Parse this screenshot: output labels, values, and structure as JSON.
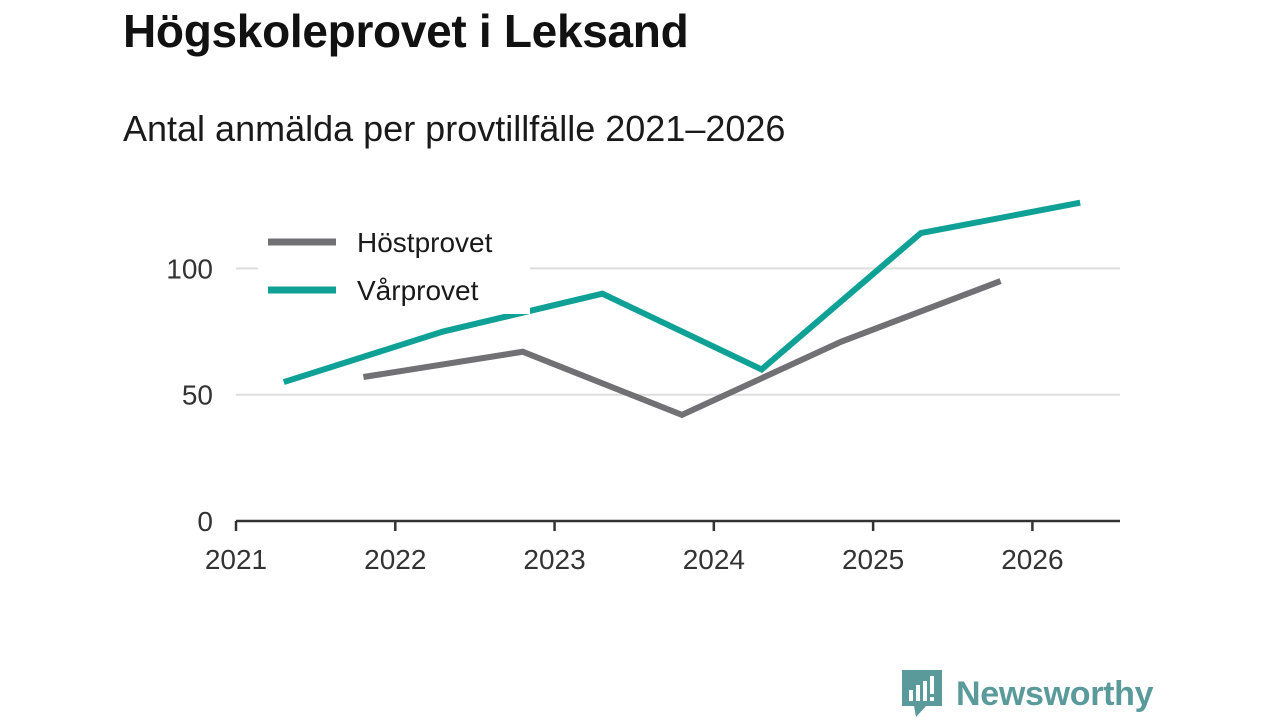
{
  "header": {
    "title": "Högskoleprovet i Leksand",
    "subtitle": "Antal anmälda per provtillfälle 2021–2026"
  },
  "brand": {
    "name": "Newsworthy",
    "color": "#5a9a9a"
  },
  "chart_data": {
    "type": "line",
    "title": "Högskoleprovet i Leksand",
    "subtitle": "Antal anmälda per provtillfälle 2021–2026",
    "xlabel": "",
    "ylabel": "",
    "x_ticks": [
      "2021",
      "2022",
      "2023",
      "2024",
      "2025",
      "2026"
    ],
    "y_ticks": [
      0,
      50,
      100
    ],
    "xlim": [
      2021,
      2026.55
    ],
    "ylim": [
      0,
      135
    ],
    "grid": true,
    "legend": "top-left",
    "series": [
      {
        "name": "Höstprovet",
        "color": "#707075",
        "points": [
          {
            "x": 2021.8,
            "y": 57
          },
          {
            "x": 2022.8,
            "y": 67
          },
          {
            "x": 2023.8,
            "y": 42
          },
          {
            "x": 2024.8,
            "y": 71
          },
          {
            "x": 2025.8,
            "y": 95
          }
        ]
      },
      {
        "name": "Vårprovet",
        "color": "#0fa196",
        "points": [
          {
            "x": 2021.3,
            "y": 55
          },
          {
            "x": 2022.3,
            "y": 75
          },
          {
            "x": 2023.3,
            "y": 90
          },
          {
            "x": 2024.3,
            "y": 60
          },
          {
            "x": 2025.3,
            "y": 114
          },
          {
            "x": 2026.3,
            "y": 126
          }
        ]
      }
    ]
  }
}
